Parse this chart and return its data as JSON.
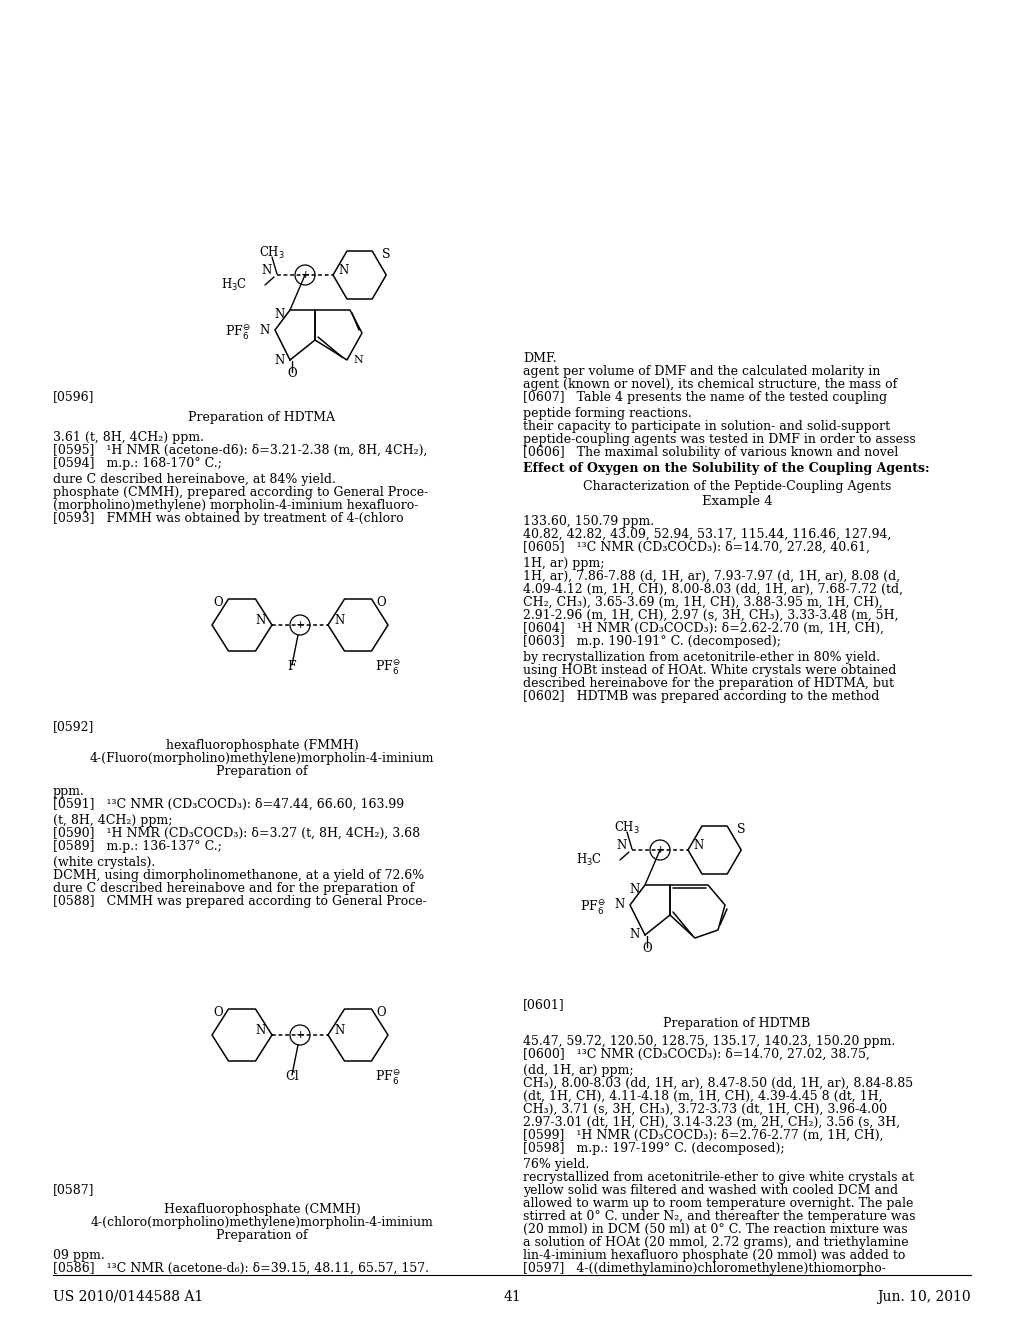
{
  "bg_color": "#ffffff",
  "header_left": "US 2010/0144588 A1",
  "header_right": "Jun. 10, 2010",
  "page_number": "41"
}
